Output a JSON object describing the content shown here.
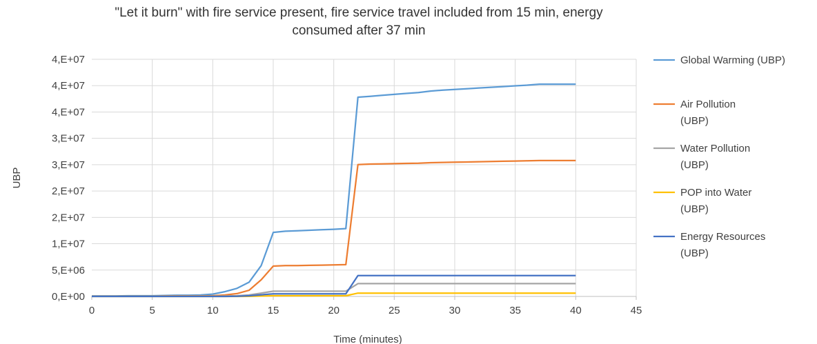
{
  "chart_data": {
    "type": "line",
    "title": "\"Let it burn\" with fire service present, fire service travel included from 15 min, energy consumed after 37 min",
    "xlabel": "Time (minutes)",
    "ylabel": "UBP",
    "xlim": [
      0,
      45
    ],
    "ylim": [
      0,
      50000000
    ],
    "x_ticks": [
      "0",
      "5",
      "10",
      "15",
      "20",
      "25",
      "30",
      "35",
      "40",
      "45"
    ],
    "y_ticks": [
      "0,E+00",
      "5,E+06",
      "1,E+07",
      "2,E+07",
      "2,E+07",
      "3,E+07",
      "3,E+07",
      "4,E+07",
      "4,E+07",
      "4,E+07"
    ],
    "grid": true,
    "legend_position": "right",
    "x": [
      0,
      1,
      2,
      3,
      4,
      5,
      6,
      7,
      8,
      9,
      10,
      11,
      12,
      13,
      14,
      15,
      16,
      17,
      18,
      19,
      20,
      21,
      22,
      23,
      24,
      25,
      26,
      27,
      28,
      29,
      30,
      31,
      32,
      33,
      34,
      35,
      36,
      37,
      38,
      39,
      40
    ],
    "series": [
      {
        "name": "Global Warming (UBP)",
        "color": "#5B9BD5",
        "values": [
          100000,
          100000,
          100000,
          150000,
          150000,
          150000,
          200000,
          250000,
          250000,
          300000,
          500000,
          1000000,
          1700000,
          3000000,
          6500000,
          13500000,
          13750000,
          13850000,
          13950000,
          14050000,
          14150000,
          14300000,
          42000000,
          42200000,
          42400000,
          42600000,
          42800000,
          43000000,
          43300000,
          43500000,
          43650000,
          43800000,
          43950000,
          44100000,
          44250000,
          44400000,
          44550000,
          44750000,
          44750000,
          44750000,
          44750000
        ]
      },
      {
        "name": "Air Pollution (UBP)",
        "color": "#ED7D31",
        "values": [
          50000,
          50000,
          50000,
          50000,
          50000,
          50000,
          80000,
          100000,
          100000,
          120000,
          150000,
          300000,
          600000,
          1300000,
          3500000,
          6400000,
          6500000,
          6500000,
          6550000,
          6600000,
          6650000,
          6700000,
          27800000,
          27900000,
          27950000,
          28000000,
          28050000,
          28100000,
          28200000,
          28250000,
          28300000,
          28350000,
          28400000,
          28450000,
          28500000,
          28550000,
          28600000,
          28650000,
          28650000,
          28650000,
          28650000
        ]
      },
      {
        "name": "Water Pollution (UBP)",
        "color": "#A5A5A5",
        "values": [
          20000,
          20000,
          20000,
          20000,
          20000,
          20000,
          20000,
          30000,
          30000,
          30000,
          50000,
          80000,
          150000,
          300000,
          700000,
          1100000,
          1100000,
          1100000,
          1100000,
          1100000,
          1100000,
          1100000,
          2700000,
          2700000,
          2700000,
          2700000,
          2700000,
          2700000,
          2700000,
          2700000,
          2700000,
          2700000,
          2700000,
          2700000,
          2700000,
          2700000,
          2700000,
          2700000,
          2700000,
          2700000,
          2700000
        ]
      },
      {
        "name": "POP into Water (UBP)",
        "color": "#FFC000",
        "values": [
          0,
          0,
          0,
          0,
          0,
          0,
          0,
          0,
          0,
          0,
          0,
          0,
          0,
          20000,
          80000,
          150000,
          150000,
          150000,
          150000,
          150000,
          150000,
          150000,
          700000,
          700000,
          700000,
          700000,
          700000,
          700000,
          700000,
          700000,
          700000,
          700000,
          700000,
          700000,
          700000,
          700000,
          700000,
          700000,
          700000,
          700000,
          700000
        ]
      },
      {
        "name": "Energy Resources (UBP)",
        "color": "#4472C4",
        "values": [
          0,
          0,
          0,
          0,
          0,
          0,
          0,
          0,
          0,
          0,
          0,
          0,
          50000,
          150000,
          350000,
          550000,
          550000,
          550000,
          550000,
          550000,
          550000,
          550000,
          4400000,
          4400000,
          4400000,
          4400000,
          4400000,
          4400000,
          4400000,
          4400000,
          4400000,
          4400000,
          4400000,
          4400000,
          4400000,
          4400000,
          4400000,
          4400000,
          4400000,
          4400000,
          4400000
        ]
      }
    ],
    "legend": [
      {
        "lines": [
          "Global Warming (UBP)"
        ],
        "color": "#5B9BD5"
      },
      {
        "lines": [
          "Air Pollution",
          "(UBP)"
        ],
        "color": "#ED7D31"
      },
      {
        "lines": [
          "Water Pollution",
          "(UBP)"
        ],
        "color": "#A5A5A5"
      },
      {
        "lines": [
          "POP into Water",
          "(UBP)"
        ],
        "color": "#FFC000"
      },
      {
        "lines": [
          "Energy Resources",
          "(UBP)"
        ],
        "color": "#4472C4"
      }
    ]
  }
}
